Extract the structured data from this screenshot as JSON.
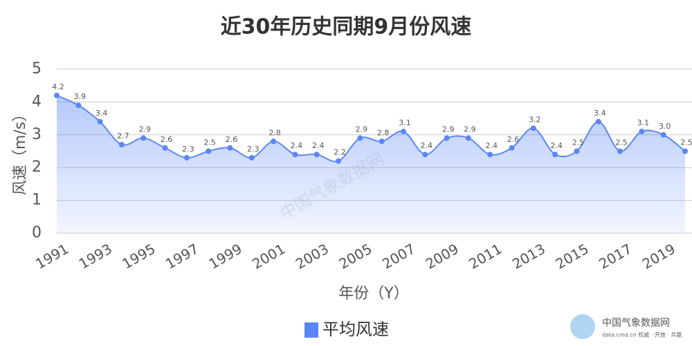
{
  "chart_data": {
    "type": "line",
    "title": "近30年历史同期9月份风速",
    "x_label": "年份（Y）",
    "y_label": "风速（m/s）",
    "categories": [
      "1991",
      null,
      "1993",
      null,
      "1995",
      null,
      "1997",
      null,
      "1999",
      null,
      "2001",
      null,
      "2003",
      null,
      "2005",
      null,
      "2007",
      null,
      "2009",
      null,
      "2011",
      null,
      "2013",
      null,
      "2015",
      null,
      "2017",
      null,
      "2019",
      null
    ],
    "series": [
      {
        "name": "平均风速",
        "color": "#5b87f5",
        "values": [
          4.2,
          3.9,
          3.4,
          2.7,
          2.9,
          2.6,
          2.3,
          2.5,
          2.6,
          2.3,
          2.8,
          2.4,
          2.4,
          2.2,
          2.9,
          2.8,
          3.1,
          2.4,
          2.9,
          2.9,
          2.4,
          2.6,
          3.2,
          2.4,
          2.5,
          3.4,
          2.5,
          3.1,
          3.0,
          2.5
        ],
        "value_labels": [
          "4.2",
          "3.9",
          "3.4",
          "2.7",
          "2.9",
          "2.6",
          "2.3",
          "2.5",
          "2.6",
          "2.3",
          "2.8",
          "2.4",
          "2.4",
          "2.2",
          "2.9",
          "2.8",
          "3.1",
          "2.4",
          "2.9",
          "2.9",
          "2.4",
          "2.6",
          "3.2",
          "2.4",
          "2.5",
          "3.4",
          "2.5",
          "3.1",
          "3.0",
          "2.5"
        ]
      }
    ],
    "ylim": [
      0,
      5
    ],
    "yticks": [
      0,
      1,
      2,
      3,
      4,
      5
    ],
    "grid": true,
    "legend": "bottom",
    "watermark": "中国气象数据网",
    "logo_text": "中国气象数据网",
    "logo_subtext": "data.cma.cn 权威 · 开放 · 共赢"
  }
}
